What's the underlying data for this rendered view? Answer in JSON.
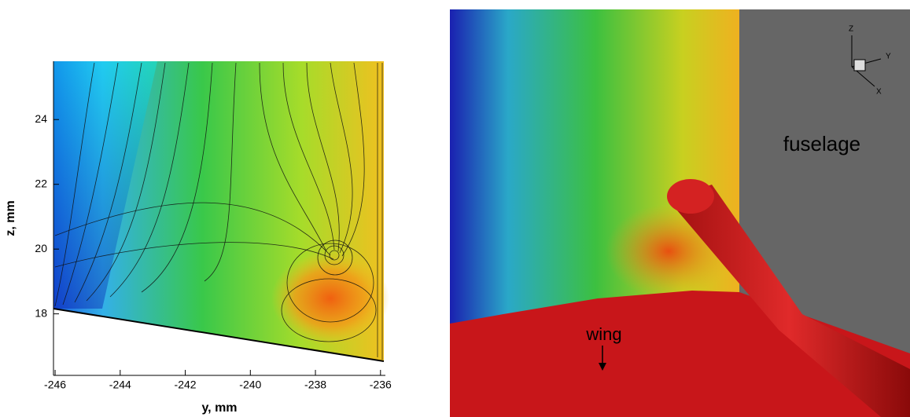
{
  "chart_data": [
    {
      "type": "contour",
      "xlabel": "y, mm",
      "ylabel": "z, mm",
      "xlim": [
        -246.05,
        -235.85
      ],
      "ylim": [
        16.1,
        25.8
      ],
      "xticks": [
        -246,
        -244,
        -242,
        -240,
        -238,
        -236
      ],
      "yticks": [
        18,
        20,
        22,
        24
      ]
    },
    {
      "type": "render",
      "annotations": [
        "fuselage",
        "wing"
      ],
      "axis_labels": [
        "Z",
        "Y",
        "X"
      ]
    }
  ]
}
